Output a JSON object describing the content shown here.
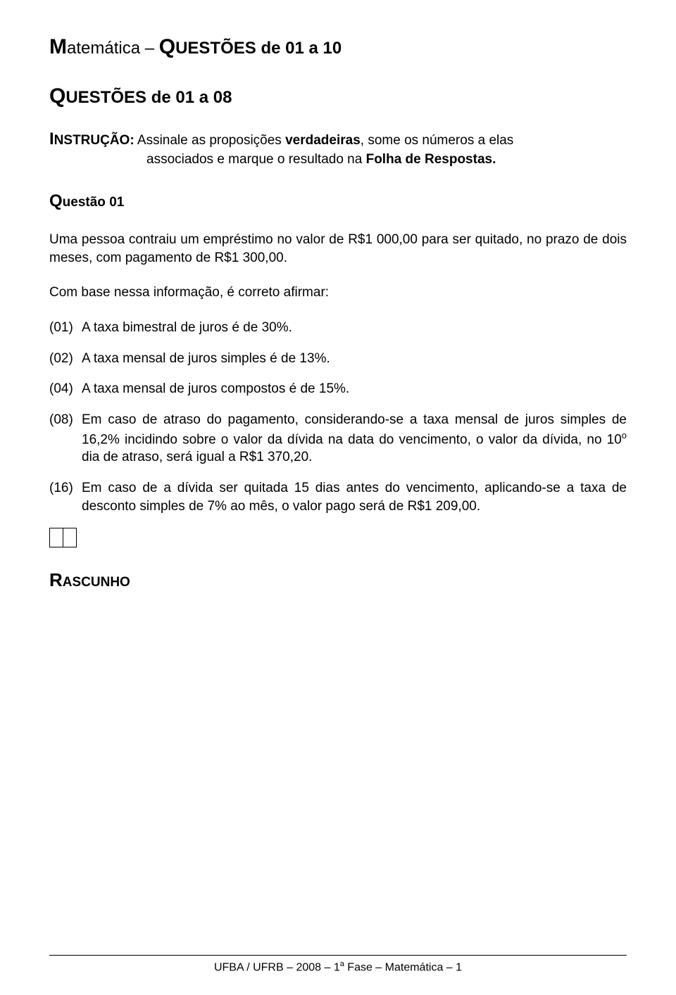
{
  "header": {
    "title_subject_big_first": "M",
    "title_subject_rest": "atemática  –  ",
    "title_questoes_big_first": "Q",
    "title_questoes_rest": "UESTÕES",
    "title_range": "  de  01 a 10",
    "subtitle_big_first": "Q",
    "subtitle_rest": "UESTÕES",
    "subtitle_range": "  de  01 a 08"
  },
  "instruction": {
    "big_first": "I",
    "label_rest": "NSTRUÇÃO:",
    "line1": " Assinale as proposições verdadeiras, some os números a elas",
    "line2": "associados e marque o resultado na Folha de Respostas.",
    "bold_phrase": "Folha de Respostas."
  },
  "question": {
    "q_big": "Q",
    "q_rest": "uestão 01",
    "context": "Uma pessoa contraiu um empréstimo no valor de R$1 000,00 para ser quitado, no prazo de dois meses, com pagamento de R$1 300,00.",
    "stem": "Com base nessa informação, é correto afirmar:",
    "propositions": [
      {
        "num": "(01)",
        "text": "A taxa bimestral de juros é de 30%."
      },
      {
        "num": "(02)",
        "text": "A taxa mensal de juros simples é de 13%."
      },
      {
        "num": "(04)",
        "text": "A taxa mensal de juros compostos é de 15%."
      },
      {
        "num": "(08)",
        "text": "Em caso de atraso do pagamento, considerando-se  a taxa mensal de juros simples de 16,2% incidindo sobre o valor da dívida na data do vencimento, o valor da dívida, no 10º dia de atraso, será igual a R$1 370,20."
      },
      {
        "num": "(16)",
        "text": "Em caso de a dívida ser quitada 15 dias antes do vencimento, aplicando-se a taxa de desconto simples de 7% ao mês, o valor pago será de R$1 209,00."
      }
    ]
  },
  "rascunho": {
    "big_first": "R",
    "rest": "ASCUNHO"
  },
  "footer": {
    "text_before": "UFBA / UFRB – 2008 – 1",
    "sup": "a",
    "text_after": " Fase – Matemática – 1"
  }
}
